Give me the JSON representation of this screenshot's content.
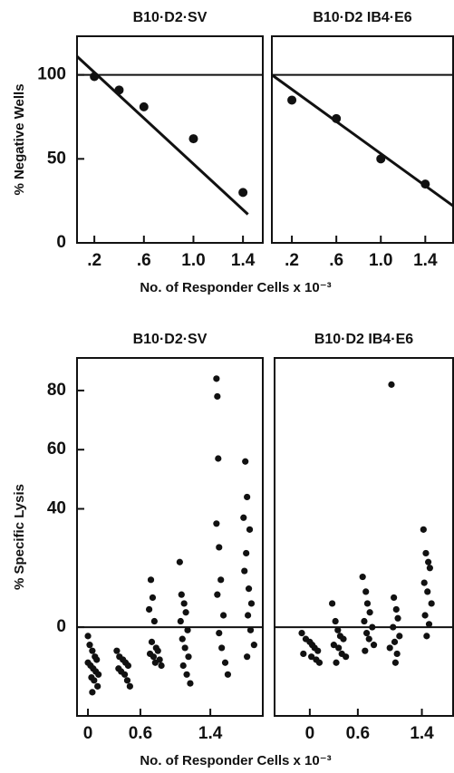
{
  "chart_data": [
    {
      "type": "scatter",
      "title": "B10·D2·SV",
      "ylabel": "% Negative Wells",
      "xlabel": "No. of Responder Cells x 10⁻³",
      "x": [
        0.2,
        0.4,
        0.6,
        1.0,
        1.4
      ],
      "values": [
        99,
        91,
        81,
        62,
        30
      ],
      "hline": 100,
      "fit": {
        "x": [
          0.06,
          1.44
        ],
        "y": [
          111,
          17
        ]
      },
      "xlim": [
        0.06,
        1.56
      ],
      "ylim": [
        0,
        123
      ],
      "xticks": [
        {
          "value": 0.2,
          "label": ".2"
        },
        {
          "value": 0.6,
          "label": ".6"
        },
        {
          "value": 1.0,
          "label": "1.0"
        },
        {
          "value": 1.4,
          "label": "1.4"
        }
      ],
      "yticks": [
        0,
        50,
        100
      ]
    },
    {
      "type": "scatter",
      "title": "B10·D2 IB4·E6",
      "x": [
        0.2,
        0.6,
        1.0,
        1.4
      ],
      "values": [
        85,
        74,
        50,
        35
      ],
      "hline": 100,
      "fit": {
        "x": [
          0.02,
          1.65
        ],
        "y": [
          100,
          22
        ]
      },
      "xlim": [
        0.02,
        1.65
      ],
      "ylim": [
        0,
        123
      ],
      "xticks": [
        {
          "value": 0.2,
          "label": ".2"
        },
        {
          "value": 0.6,
          "label": ".6"
        },
        {
          "value": 1.0,
          "label": "1.0"
        },
        {
          "value": 1.4,
          "label": "1.4"
        }
      ]
    },
    {
      "type": "scatter",
      "title": "B10·D2·SV",
      "ylabel": "% Specific Lysis",
      "xlabel": "No. of Responder Cells x 10⁻³",
      "x": [
        0.0,
        0.02,
        0.05,
        0.08,
        0.1,
        0.0,
        0.03,
        0.06,
        0.09,
        0.12,
        0.04,
        0.07,
        0.11,
        0.05,
        0.33,
        0.36,
        0.4,
        0.43,
        0.46,
        0.35,
        0.38,
        0.42,
        0.45,
        0.48,
        0.72,
        0.74,
        0.7,
        0.76,
        0.73,
        0.78,
        0.8,
        0.71,
        0.75,
        0.82,
        0.77,
        0.84,
        1.05,
        1.07,
        1.1,
        1.12,
        1.06,
        1.14,
        1.08,
        1.11,
        1.15,
        1.09,
        1.13,
        1.17,
        1.47,
        1.48,
        1.49,
        1.47,
        1.5,
        1.52,
        1.48,
        1.55,
        1.5,
        1.53,
        1.57,
        1.6,
        1.8,
        1.82,
        1.78,
        1.85,
        1.81,
        1.79,
        1.84,
        1.87,
        1.83,
        1.86,
        1.9,
        1.82
      ],
      "values": [
        -3,
        -6,
        -8,
        -10,
        -11,
        -12,
        -13,
        -14,
        -15,
        -16,
        -17,
        -18,
        -20,
        -22,
        -8,
        -10,
        -11,
        -12,
        -13,
        -14,
        -15,
        -16,
        -18,
        -20,
        16,
        10,
        6,
        2,
        -5,
        -7,
        -8,
        -9,
        -10,
        -11,
        -12,
        -13,
        22,
        11,
        8,
        5,
        2,
        -1,
        -4,
        -7,
        -10,
        -13,
        -16,
        -19,
        84,
        78,
        57,
        35,
        27,
        16,
        11,
        4,
        -2,
        -7,
        -12,
        -16,
        56,
        44,
        37,
        33,
        25,
        19,
        13,
        8,
        4,
        -1,
        -6,
        -10
      ],
      "hline": 0,
      "xlim": [
        -0.125,
        2.0
      ],
      "ylim": [
        -30,
        91
      ],
      "xticks": [
        0,
        0.6,
        1.4
      ],
      "yticks": [
        0,
        40,
        60,
        80
      ]
    },
    {
      "type": "scatter",
      "title": "B10·D2 IB4·E6",
      "x": [
        -0.1,
        -0.05,
        0.0,
        0.03,
        0.06,
        0.1,
        -0.08,
        0.02,
        0.08,
        0.12,
        0.28,
        0.32,
        0.35,
        0.38,
        0.42,
        0.3,
        0.36,
        0.4,
        0.45,
        0.33,
        0.66,
        0.7,
        0.72,
        0.75,
        0.68,
        0.78,
        0.71,
        0.74,
        0.8,
        0.69,
        1.02,
        1.05,
        1.08,
        1.1,
        1.04,
        1.12,
        1.06,
        1.0,
        1.09,
        1.07,
        1.42,
        1.45,
        1.48,
        1.5,
        1.43,
        1.47,
        1.52,
        1.44,
        1.49,
        1.46
      ],
      "values": [
        -2,
        -4,
        -5,
        -6,
        -7,
        -8,
        -9,
        -10,
        -11,
        -12,
        8,
        2,
        -1,
        -3,
        -4,
        -6,
        -7,
        -9,
        -10,
        -12,
        17,
        12,
        8,
        5,
        2,
        0,
        -2,
        -4,
        -6,
        -8,
        82,
        10,
        6,
        3,
        0,
        -3,
        -5,
        -7,
        -9,
        -12,
        33,
        25,
        22,
        20,
        15,
        12,
        8,
        4,
        1,
        -3
      ],
      "hline": 0,
      "xlim": [
        -0.44,
        1.79
      ],
      "ylim": [
        -30,
        91
      ],
      "xticks": [
        0,
        0.6,
        1.4
      ]
    }
  ]
}
